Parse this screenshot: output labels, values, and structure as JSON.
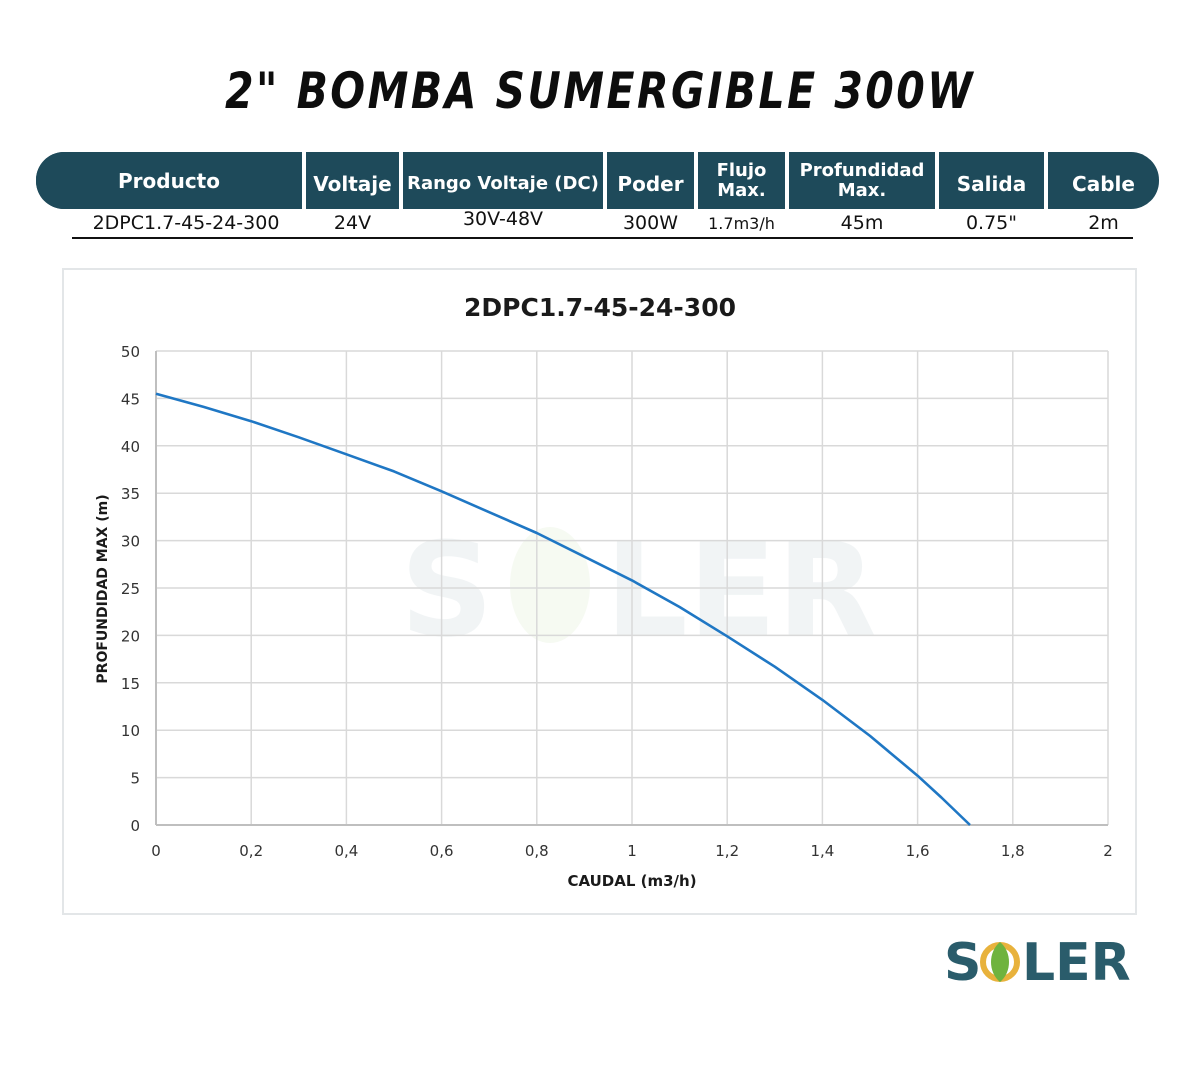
{
  "title": "2\" BOMBA SUMERGIBLE 300W",
  "spec_table": {
    "headers": [
      {
        "lines": [
          "Producto"
        ]
      },
      {
        "lines": [
          "Voltaje"
        ]
      },
      {
        "lines": [
          "Rango Voltaje (DC)"
        ]
      },
      {
        "lines": [
          "Poder"
        ]
      },
      {
        "lines": [
          "Flujo",
          "Max."
        ]
      },
      {
        "lines": [
          "Profundidad",
          "Max."
        ]
      },
      {
        "lines": [
          "Salida"
        ]
      },
      {
        "lines": [
          "Cable"
        ]
      }
    ],
    "values": [
      "2DPC1.7-45-24-300",
      "24V",
      "30V-48V",
      "300W",
      "1.7m3/h",
      "45m",
      "0.75\"",
      "2m"
    ]
  },
  "chart_data": {
    "type": "line",
    "title": "2DPC1.7-45-24-300",
    "xlabel": "CAUDAL (m3/h)",
    "ylabel": "PROFUNDIDAD MAX (m)",
    "xlim": [
      0,
      2
    ],
    "ylim": [
      0,
      50
    ],
    "xticks": [
      "0",
      "0,2",
      "0,4",
      "0,6",
      "0,8",
      "1",
      "1,2",
      "1,4",
      "1,6",
      "1,8",
      "2"
    ],
    "yticks": [
      "0",
      "5",
      "10",
      "15",
      "20",
      "25",
      "30",
      "35",
      "40",
      "45",
      "50"
    ],
    "grid": true,
    "series": [
      {
        "color": "#1f77c4",
        "x": [
          0,
          0.1,
          0.2,
          0.3,
          0.4,
          0.5,
          0.6,
          0.7,
          0.8,
          0.9,
          1.0,
          1.1,
          1.2,
          1.3,
          1.4,
          1.5,
          1.6,
          1.65,
          1.71
        ],
        "y": [
          45.5,
          44.1,
          42.6,
          40.9,
          39.1,
          37.3,
          35.2,
          33.0,
          30.8,
          28.3,
          25.8,
          23.0,
          19.9,
          16.7,
          13.2,
          9.4,
          5.2,
          2.9,
          0
        ]
      }
    ]
  },
  "logo": {
    "text": "SOLER",
    "colors": {
      "primary": "#2a5c6b",
      "leaf": "#6fb33e",
      "accent": "#e8b23c"
    }
  }
}
